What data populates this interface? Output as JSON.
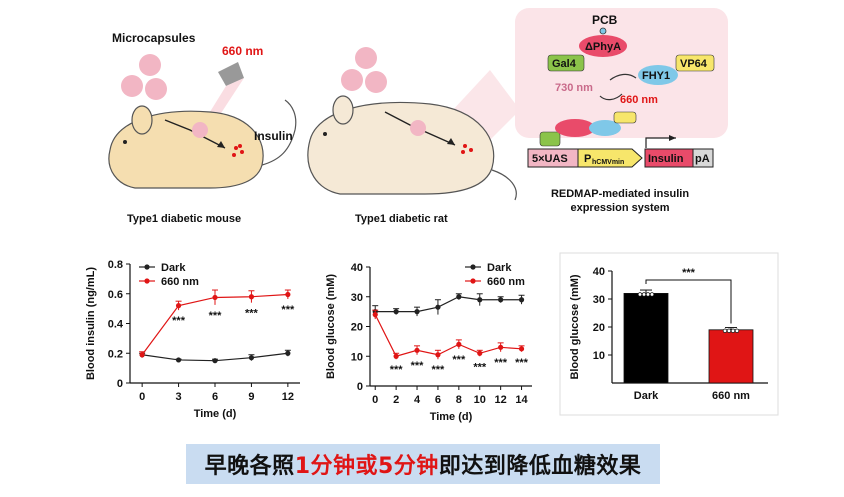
{
  "top": {
    "mouse": {
      "microcapsules_label": "Microcapsules",
      "light_label": "660 nm",
      "insulin_label": "Insulin",
      "caption": "Type1 diabetic mouse"
    },
    "rat": {
      "caption": "Type1 diabetic rat"
    },
    "redmap": {
      "pcb": "PCB",
      "phya": "ΔPhyA",
      "gal4": "Gal4",
      "vp64": "VP64",
      "fhy1": "FHY1",
      "nm730": "730 nm",
      "nm660": "660 nm",
      "uas": "5×UAS",
      "promoter_p": "P",
      "promoter_sub": "hCMVmin",
      "insulin": "Insulin",
      "pa": "pA",
      "caption_line1": "REDMAP-mediated insulin",
      "caption_line2": "expression system"
    }
  },
  "colors": {
    "red": "#e01515",
    "dark": "#222222",
    "pink_bg": "#fbe4e8",
    "banner": "#c9dcf1"
  },
  "banner": {
    "part1": "早晚各照",
    "part2": "1分钟或5分钟",
    "part3": "即达到降低血糖效果"
  },
  "chart_data": [
    {
      "type": "line",
      "ylabel": "Blood insulin (ng/mL)",
      "xlabel": "Time (d)",
      "ylim": [
        0,
        0.8
      ],
      "yticks": [
        "0",
        "0.2",
        "0.4",
        "0.6",
        "0.8"
      ],
      "x": [
        0,
        3,
        6,
        9,
        12
      ],
      "xticks": [
        "0",
        "3",
        "6",
        "9",
        "12"
      ],
      "series": [
        {
          "name": "Dark",
          "values": [
            0.19,
            0.155,
            0.15,
            0.17,
            0.2
          ],
          "err": [
            0.01,
            0.005,
            0.01,
            0.02,
            0.02
          ]
        },
        {
          "name": "660 nm",
          "values": [
            0.19,
            0.52,
            0.575,
            0.58,
            0.595
          ],
          "err": [
            0.02,
            0.03,
            0.05,
            0.04,
            0.03
          ]
        }
      ],
      "annotations": [
        "***",
        "***",
        "***",
        "***"
      ],
      "annotation_x": [
        3,
        6,
        9,
        12
      ]
    },
    {
      "type": "line",
      "ylabel": "Blood glucose (mM)",
      "xlabel": "Time (d)",
      "ylim": [
        0,
        40
      ],
      "yticks": [
        "0",
        "10",
        "20",
        "30",
        "40"
      ],
      "x": [
        0,
        2,
        4,
        6,
        8,
        10,
        12,
        14
      ],
      "xticks": [
        "0",
        "2",
        "4",
        "6",
        "8",
        "10",
        "12",
        "14"
      ],
      "series": [
        {
          "name": "Dark",
          "values": [
            25,
            25,
            25,
            26.5,
            30,
            29,
            29,
            29
          ],
          "err": [
            2,
            1,
            1.5,
            2.5,
            1,
            2,
            1,
            1.5
          ]
        },
        {
          "name": "660 nm",
          "values": [
            24,
            10,
            12,
            10.5,
            14,
            11,
            13,
            12.5
          ],
          "err": [
            1.5,
            1,
            1.5,
            1.5,
            1.5,
            1,
            1.5,
            1
          ]
        }
      ],
      "annotations": [
        "***",
        "***",
        "***",
        "***",
        "***",
        "***",
        "***"
      ],
      "annotation_x": [
        2,
        4,
        6,
        8,
        10,
        12,
        14
      ]
    },
    {
      "type": "bar",
      "ylabel": "Blood glucose (mM)",
      "ylim": [
        0,
        40
      ],
      "yticks": [
        "10",
        "20",
        "30",
        "40"
      ],
      "categories": [
        "Dark",
        "660 nm"
      ],
      "values": [
        32,
        19
      ],
      "err": [
        1.2,
        0.8
      ],
      "colors": [
        "#000000",
        "#e01515"
      ],
      "significance": "***"
    }
  ]
}
